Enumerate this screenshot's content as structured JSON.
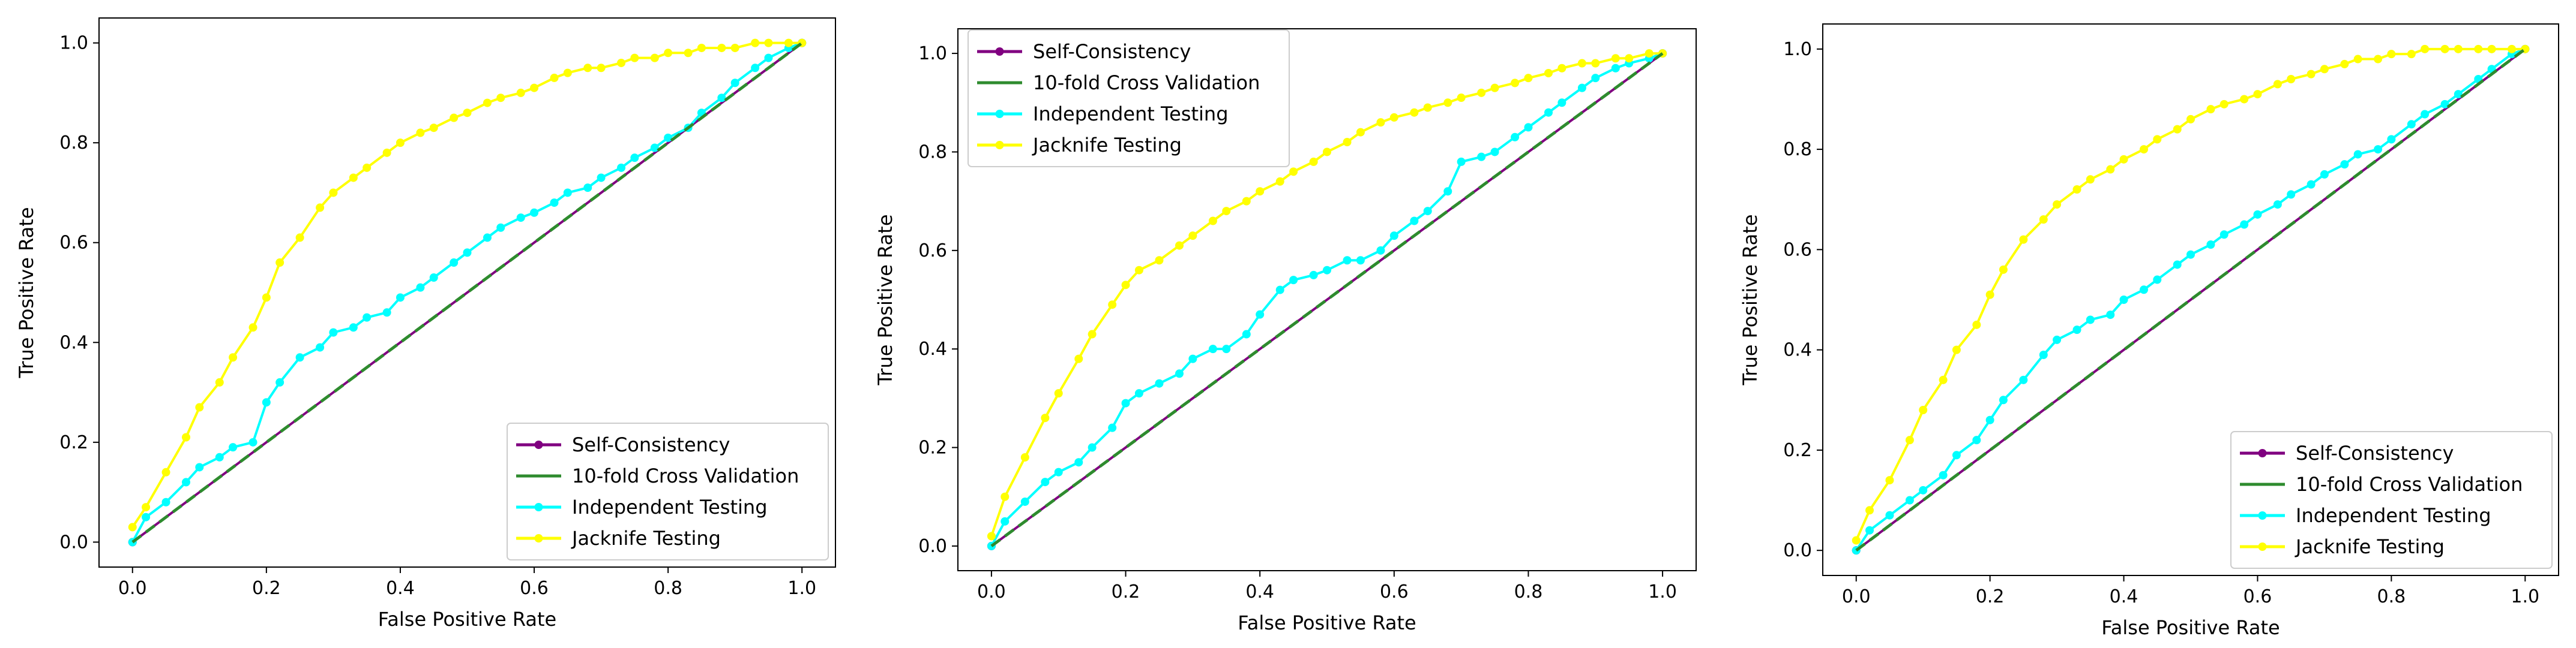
{
  "chart_data": [
    {
      "type": "line",
      "xlabel": "False Positive Rate",
      "ylabel": "True Positive Rate",
      "xlim": [
        -0.05,
        1.05
      ],
      "ylim": [
        -0.05,
        1.05
      ],
      "xticks": [
        "0.0",
        "0.2",
        "0.4",
        "0.6",
        "0.8",
        "1.0"
      ],
      "yticks": [
        "0.0",
        "0.2",
        "0.4",
        "0.6",
        "0.8",
        "1.0"
      ],
      "legend_position": "lower-right",
      "series": [
        {
          "name": "Self-Consistency",
          "color": "#800080",
          "style": "line-marker",
          "x": [
            0.0,
            1.0
          ],
          "y": [
            0.0,
            1.0
          ]
        },
        {
          "name": "10-fold Cross Validation",
          "color": "#2e8b2e",
          "style": "dashed",
          "x": [
            0.0,
            1.0
          ],
          "y": [
            0.0,
            1.0
          ]
        },
        {
          "name": "Independent Testing",
          "color": "#00ffff",
          "style": "line-marker",
          "x": [
            0.0,
            0.02,
            0.05,
            0.08,
            0.1,
            0.13,
            0.15,
            0.18,
            0.2,
            0.22,
            0.25,
            0.28,
            0.3,
            0.33,
            0.35,
            0.38,
            0.4,
            0.43,
            0.45,
            0.48,
            0.5,
            0.53,
            0.55,
            0.58,
            0.6,
            0.63,
            0.65,
            0.68,
            0.7,
            0.73,
            0.75,
            0.78,
            0.8,
            0.83,
            0.85,
            0.88,
            0.9,
            0.93,
            0.95,
            0.98,
            1.0
          ],
          "y": [
            0.0,
            0.05,
            0.08,
            0.12,
            0.15,
            0.17,
            0.19,
            0.2,
            0.28,
            0.32,
            0.37,
            0.39,
            0.42,
            0.43,
            0.45,
            0.46,
            0.49,
            0.51,
            0.53,
            0.56,
            0.58,
            0.61,
            0.63,
            0.65,
            0.66,
            0.68,
            0.7,
            0.71,
            0.73,
            0.75,
            0.77,
            0.79,
            0.81,
            0.83,
            0.86,
            0.89,
            0.92,
            0.95,
            0.97,
            0.99,
            1.0
          ]
        },
        {
          "name": "Jacknife Testing",
          "color": "#ffff00",
          "style": "line-marker",
          "x": [
            0.0,
            0.02,
            0.05,
            0.08,
            0.1,
            0.13,
            0.15,
            0.18,
            0.2,
            0.22,
            0.25,
            0.28,
            0.3,
            0.33,
            0.35,
            0.38,
            0.4,
            0.43,
            0.45,
            0.48,
            0.5,
            0.53,
            0.55,
            0.58,
            0.6,
            0.63,
            0.65,
            0.68,
            0.7,
            0.73,
            0.75,
            0.78,
            0.8,
            0.83,
            0.85,
            0.88,
            0.9,
            0.93,
            0.95,
            0.98,
            1.0
          ],
          "y": [
            0.03,
            0.07,
            0.14,
            0.21,
            0.27,
            0.32,
            0.37,
            0.43,
            0.49,
            0.56,
            0.61,
            0.67,
            0.7,
            0.73,
            0.75,
            0.78,
            0.8,
            0.82,
            0.83,
            0.85,
            0.86,
            0.88,
            0.89,
            0.9,
            0.91,
            0.93,
            0.94,
            0.95,
            0.95,
            0.96,
            0.97,
            0.97,
            0.98,
            0.98,
            0.99,
            0.99,
            0.99,
            1.0,
            1.0,
            1.0,
            1.0
          ]
        }
      ]
    },
    {
      "type": "line",
      "xlabel": "False Positive Rate",
      "ylabel": "True Positive Rate",
      "xlim": [
        -0.05,
        1.05
      ],
      "ylim": [
        -0.05,
        1.05
      ],
      "xticks": [
        "0.0",
        "0.2",
        "0.4",
        "0.6",
        "0.8",
        "1.0"
      ],
      "yticks": [
        "0.0",
        "0.2",
        "0.4",
        "0.6",
        "0.8",
        "1.0"
      ],
      "legend_position": "upper-left",
      "series": [
        {
          "name": "Self-Consistency",
          "color": "#800080",
          "style": "line-marker",
          "x": [
            0.0,
            1.0
          ],
          "y": [
            0.0,
            1.0
          ]
        },
        {
          "name": "10-fold Cross Validation",
          "color": "#2e8b2e",
          "style": "dashed",
          "x": [
            0.0,
            1.0
          ],
          "y": [
            0.0,
            1.0
          ]
        },
        {
          "name": "Independent Testing",
          "color": "#00ffff",
          "style": "line-marker",
          "x": [
            0.0,
            0.02,
            0.05,
            0.08,
            0.1,
            0.13,
            0.15,
            0.18,
            0.2,
            0.22,
            0.25,
            0.28,
            0.3,
            0.33,
            0.35,
            0.38,
            0.4,
            0.43,
            0.45,
            0.48,
            0.5,
            0.53,
            0.55,
            0.58,
            0.6,
            0.63,
            0.65,
            0.68,
            0.7,
            0.73,
            0.75,
            0.78,
            0.8,
            0.83,
            0.85,
            0.88,
            0.9,
            0.93,
            0.95,
            0.98,
            1.0
          ],
          "y": [
            0.0,
            0.05,
            0.09,
            0.13,
            0.15,
            0.17,
            0.2,
            0.24,
            0.29,
            0.31,
            0.33,
            0.35,
            0.38,
            0.4,
            0.4,
            0.43,
            0.47,
            0.52,
            0.54,
            0.55,
            0.56,
            0.58,
            0.58,
            0.6,
            0.63,
            0.66,
            0.68,
            0.72,
            0.78,
            0.79,
            0.8,
            0.83,
            0.85,
            0.88,
            0.9,
            0.93,
            0.95,
            0.97,
            0.98,
            0.99,
            1.0
          ]
        },
        {
          "name": "Jacknife Testing",
          "color": "#ffff00",
          "style": "line-marker",
          "x": [
            0.0,
            0.02,
            0.05,
            0.08,
            0.1,
            0.13,
            0.15,
            0.18,
            0.2,
            0.22,
            0.25,
            0.28,
            0.3,
            0.33,
            0.35,
            0.38,
            0.4,
            0.43,
            0.45,
            0.48,
            0.5,
            0.53,
            0.55,
            0.58,
            0.6,
            0.63,
            0.65,
            0.68,
            0.7,
            0.73,
            0.75,
            0.78,
            0.8,
            0.83,
            0.85,
            0.88,
            0.9,
            0.93,
            0.95,
            0.98,
            1.0
          ],
          "y": [
            0.02,
            0.1,
            0.18,
            0.26,
            0.31,
            0.38,
            0.43,
            0.49,
            0.53,
            0.56,
            0.58,
            0.61,
            0.63,
            0.66,
            0.68,
            0.7,
            0.72,
            0.74,
            0.76,
            0.78,
            0.8,
            0.82,
            0.84,
            0.86,
            0.87,
            0.88,
            0.89,
            0.9,
            0.91,
            0.92,
            0.93,
            0.94,
            0.95,
            0.96,
            0.97,
            0.98,
            0.98,
            0.99,
            0.99,
            1.0,
            1.0
          ]
        }
      ]
    },
    {
      "type": "line",
      "xlabel": "False Positive Rate",
      "ylabel": "True Positive Rate",
      "xlim": [
        -0.05,
        1.05
      ],
      "ylim": [
        -0.05,
        1.05
      ],
      "xticks": [
        "0.0",
        "0.2",
        "0.4",
        "0.6",
        "0.8",
        "1.0"
      ],
      "yticks": [
        "0.0",
        "0.2",
        "0.4",
        "0.6",
        "0.8",
        "1.0"
      ],
      "legend_position": "lower-right",
      "series": [
        {
          "name": "Self-Consistency",
          "color": "#800080",
          "style": "line-marker",
          "x": [
            0.0,
            1.0
          ],
          "y": [
            0.0,
            1.0
          ]
        },
        {
          "name": "10-fold Cross Validation",
          "color": "#2e8b2e",
          "style": "dashed",
          "x": [
            0.0,
            1.0
          ],
          "y": [
            0.0,
            1.0
          ]
        },
        {
          "name": "Independent Testing",
          "color": "#00ffff",
          "style": "line-marker",
          "x": [
            0.0,
            0.02,
            0.05,
            0.08,
            0.1,
            0.13,
            0.15,
            0.18,
            0.2,
            0.22,
            0.25,
            0.28,
            0.3,
            0.33,
            0.35,
            0.38,
            0.4,
            0.43,
            0.45,
            0.48,
            0.5,
            0.53,
            0.55,
            0.58,
            0.6,
            0.63,
            0.65,
            0.68,
            0.7,
            0.73,
            0.75,
            0.78,
            0.8,
            0.83,
            0.85,
            0.88,
            0.9,
            0.93,
            0.95,
            0.98,
            1.0
          ],
          "y": [
            0.0,
            0.04,
            0.07,
            0.1,
            0.12,
            0.15,
            0.19,
            0.22,
            0.26,
            0.3,
            0.34,
            0.39,
            0.42,
            0.44,
            0.46,
            0.47,
            0.5,
            0.52,
            0.54,
            0.57,
            0.59,
            0.61,
            0.63,
            0.65,
            0.67,
            0.69,
            0.71,
            0.73,
            0.75,
            0.77,
            0.79,
            0.8,
            0.82,
            0.85,
            0.87,
            0.89,
            0.91,
            0.94,
            0.96,
            0.99,
            1.0
          ]
        },
        {
          "name": "Jacknife Testing",
          "color": "#ffff00",
          "style": "line-marker",
          "x": [
            0.0,
            0.02,
            0.05,
            0.08,
            0.1,
            0.13,
            0.15,
            0.18,
            0.2,
            0.22,
            0.25,
            0.28,
            0.3,
            0.33,
            0.35,
            0.38,
            0.4,
            0.43,
            0.45,
            0.48,
            0.5,
            0.53,
            0.55,
            0.58,
            0.6,
            0.63,
            0.65,
            0.68,
            0.7,
            0.73,
            0.75,
            0.78,
            0.8,
            0.83,
            0.85,
            0.88,
            0.9,
            0.93,
            0.95,
            0.98,
            1.0
          ],
          "y": [
            0.02,
            0.08,
            0.14,
            0.22,
            0.28,
            0.34,
            0.4,
            0.45,
            0.51,
            0.56,
            0.62,
            0.66,
            0.69,
            0.72,
            0.74,
            0.76,
            0.78,
            0.8,
            0.82,
            0.84,
            0.86,
            0.88,
            0.89,
            0.9,
            0.91,
            0.93,
            0.94,
            0.95,
            0.96,
            0.97,
            0.98,
            0.98,
            0.99,
            0.99,
            1.0,
            1.0,
            1.0,
            1.0,
            1.0,
            1.0,
            1.0
          ]
        }
      ]
    }
  ]
}
